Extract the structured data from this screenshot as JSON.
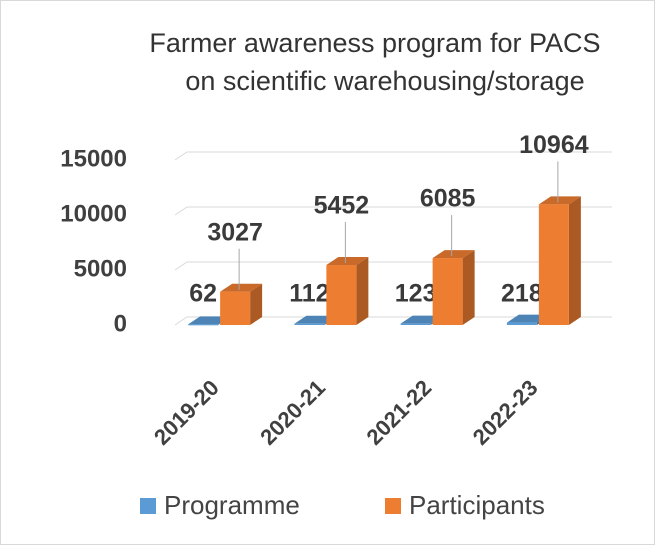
{
  "chart_data": {
    "type": "bar3d",
    "title": [
      "Farmer awareness program for PACS",
      "on scientific warehousing/storage"
    ],
    "categories": [
      "2019-20",
      "2020-21",
      "2021-22",
      "2022-23"
    ],
    "series": [
      {
        "name": "Programme",
        "color": "#5b9bd5",
        "values": [
          62,
          112,
          123,
          218
        ]
      },
      {
        "name": "Participants",
        "color": "#ed7d31",
        "values": [
          3027,
          5452,
          6085,
          10964
        ]
      }
    ],
    "ylim": [
      0,
      15000
    ],
    "yticks": [
      0,
      5000,
      10000,
      15000
    ],
    "grid": true,
    "legend": "bottom"
  }
}
